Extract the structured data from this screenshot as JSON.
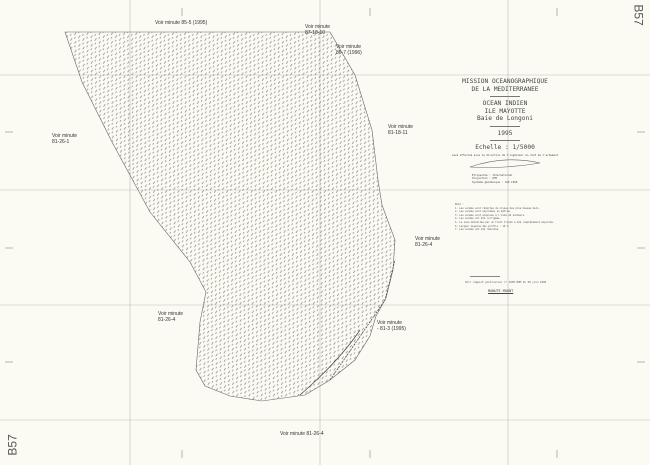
{
  "sheet_code": "B57",
  "title_block": {
    "organization": [
      "MISSION OCEANOGRAPHIQUE",
      "DE LA MEDITERRANEE"
    ],
    "region": [
      "OCEAN INDIEN",
      "ILE MAYOTTE",
      "Baie de Longoni"
    ],
    "year": "1995",
    "scale": "Echelle : 1/5000",
    "credit": "Levé effectué sous la direction de l'ingénieur en chef de l'armement",
    "projection": [
      {
        "label": "Ellipsoïde",
        "value": "International"
      },
      {
        "label": "Projection",
        "value": "UTM"
      },
      {
        "label": "Système géodésique",
        "value": "CAD 1950"
      }
    ]
  },
  "notes_heading": "Nota :",
  "notes": [
    "1. Les sondes sont réduites du niveau des plus basses mers.",
    "2. Les sondes sont exprimées en mètres.",
    "3. Les sondes sont acquises à l'aide de sondeurs.",
    "4. Les sondes ont été corrigées.",
    "5. La zone délimitée par un trait tireté a été complètement explorée.",
    "6. Largeur moyenne des profils : 10 m",
    "7. Les sondes ont été réduites."
  ],
  "report_ref": "Voir rapport particulier n° 1995 MOM du 28 juin 1995",
  "signature": "MANUTE MOUNT",
  "minute_labels": [
    {
      "text": "Voir minute  85-5  (1995)"
    },
    {
      "text": "Voir minute",
      "text2": "87-18-10"
    },
    {
      "text": "Voir minute",
      "text2": "85-7  (1996)"
    },
    {
      "text": "Voir minute",
      "text2": "81-26-1"
    },
    {
      "text": "Voir minute",
      "text2": "81-18-11"
    },
    {
      "text": "Voir minute",
      "text2": "81-26-4"
    },
    {
      "text": "Voir minute",
      "text2": "81-26-4"
    },
    {
      "text": "Voir minute",
      "text2": "- 81-3  (1995)"
    },
    {
      "text": "Voir minute  81-26-4"
    }
  ],
  "colors": {
    "paper": "#fbfbf3",
    "ink": "#333333",
    "grid": "#b0b0a8"
  }
}
